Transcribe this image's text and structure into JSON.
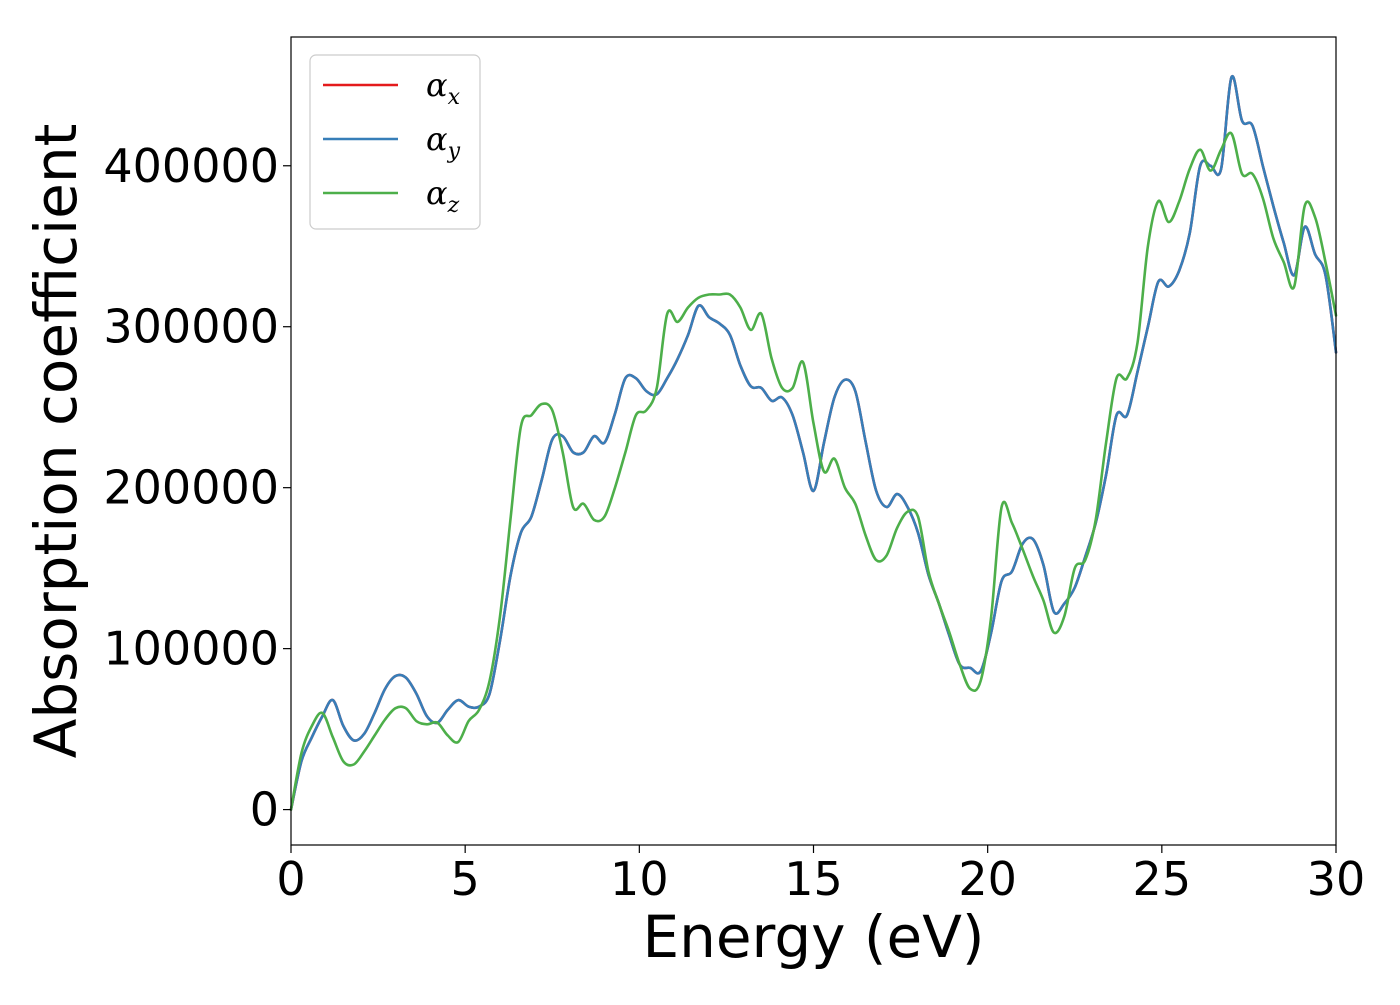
{
  "chart_data": {
    "type": "line",
    "xlabel": "Energy (eV)",
    "ylabel": "Absorption coefficient",
    "xlim": [
      0,
      30
    ],
    "ylim": [
      -22000,
      480000
    ],
    "xticks": [
      0,
      5,
      10,
      15,
      20,
      25,
      30
    ],
    "yticks": [
      0,
      100000,
      200000,
      300000,
      400000
    ],
    "grid": false,
    "legend_position": "top-left",
    "x": [
      0,
      0.3,
      0.6,
      0.9,
      1.2,
      1.5,
      1.8,
      2.1,
      2.4,
      2.7,
      3.0,
      3.3,
      3.6,
      3.9,
      4.2,
      4.5,
      4.8,
      5.1,
      5.4,
      5.7,
      6.0,
      6.3,
      6.6,
      6.9,
      7.2,
      7.5,
      7.8,
      8.1,
      8.4,
      8.7,
      9.0,
      9.3,
      9.6,
      9.9,
      10.2,
      10.5,
      10.8,
      11.1,
      11.4,
      11.7,
      12.0,
      12.3,
      12.6,
      12.9,
      13.2,
      13.5,
      13.8,
      14.1,
      14.4,
      14.7,
      15.0,
      15.3,
      15.6,
      15.9,
      16.2,
      16.5,
      16.8,
      17.1,
      17.4,
      17.7,
      18.0,
      18.3,
      18.6,
      18.9,
      19.2,
      19.5,
      19.8,
      20.1,
      20.4,
      20.7,
      21.0,
      21.3,
      21.6,
      21.9,
      22.2,
      22.5,
      22.8,
      23.1,
      23.4,
      23.7,
      24.0,
      24.3,
      24.6,
      24.9,
      25.2,
      25.5,
      25.8,
      26.1,
      26.4,
      26.7,
      27.0,
      27.3,
      27.6,
      27.9,
      28.2,
      28.5,
      28.8,
      29.1,
      29.4,
      29.7,
      30.0
    ],
    "series": [
      {
        "name": "αx",
        "sub": "x",
        "color": "#e41a1c",
        "values": [
          0,
          30000,
          45000,
          58000,
          68000,
          52000,
          43000,
          47000,
          60000,
          75000,
          83000,
          82000,
          72000,
          58000,
          54000,
          62000,
          68000,
          64000,
          64000,
          72000,
          105000,
          145000,
          172000,
          182000,
          205000,
          230000,
          232000,
          222000,
          222000,
          232000,
          228000,
          246000,
          268000,
          268000,
          260000,
          258000,
          268000,
          280000,
          295000,
          313000,
          306000,
          302000,
          295000,
          276000,
          263000,
          262000,
          254000,
          256000,
          245000,
          222000,
          198000,
          228000,
          256000,
          267000,
          260000,
          228000,
          198000,
          188000,
          196000,
          188000,
          172000,
          146000,
          128000,
          108000,
          90000,
          88000,
          86000,
          110000,
          142000,
          148000,
          165000,
          168000,
          152000,
          123000,
          128000,
          138000,
          157000,
          178000,
          208000,
          245000,
          245000,
          272000,
          300000,
          328000,
          325000,
          335000,
          358000,
          400000,
          400000,
          398000,
          455000,
          428000,
          425000,
          400000,
          375000,
          352000,
          332000,
          362000,
          345000,
          332000,
          284000
        ]
      },
      {
        "name": "αy",
        "sub": "y",
        "color": "#377eb8",
        "values": [
          0,
          30000,
          45000,
          58000,
          68000,
          52000,
          43000,
          47000,
          60000,
          75000,
          83000,
          82000,
          72000,
          58000,
          54000,
          62000,
          68000,
          64000,
          64000,
          72000,
          105000,
          145000,
          172000,
          182000,
          205000,
          230000,
          232000,
          222000,
          222000,
          232000,
          228000,
          246000,
          268000,
          268000,
          260000,
          258000,
          268000,
          280000,
          295000,
          313000,
          306000,
          302000,
          295000,
          276000,
          263000,
          262000,
          254000,
          256000,
          245000,
          222000,
          198000,
          228000,
          256000,
          267000,
          260000,
          228000,
          198000,
          188000,
          196000,
          188000,
          172000,
          146000,
          128000,
          108000,
          90000,
          88000,
          86000,
          110000,
          142000,
          148000,
          165000,
          168000,
          152000,
          123000,
          128000,
          138000,
          157000,
          178000,
          208000,
          245000,
          245000,
          272000,
          300000,
          328000,
          325000,
          335000,
          358000,
          400000,
          400000,
          398000,
          455000,
          428000,
          425000,
          400000,
          375000,
          352000,
          332000,
          362000,
          345000,
          332000,
          284000
        ]
      },
      {
        "name": "αz",
        "sub": "z",
        "color": "#4daf4a",
        "values": [
          0,
          35000,
          52000,
          60000,
          45000,
          30000,
          28000,
          36000,
          46000,
          56000,
          63000,
          63000,
          55000,
          53000,
          54000,
          46000,
          42000,
          55000,
          62000,
          80000,
          120000,
          180000,
          238000,
          245000,
          252000,
          248000,
          222000,
          188000,
          190000,
          180000,
          182000,
          200000,
          222000,
          245000,
          248000,
          262000,
          308000,
          303000,
          312000,
          318000,
          320000,
          320000,
          320000,
          312000,
          298000,
          308000,
          280000,
          262000,
          262000,
          278000,
          240000,
          210000,
          218000,
          200000,
          190000,
          170000,
          155000,
          158000,
          175000,
          185000,
          182000,
          148000,
          128000,
          110000,
          90000,
          75000,
          80000,
          120000,
          188000,
          178000,
          162000,
          145000,
          130000,
          110000,
          120000,
          150000,
          155000,
          180000,
          228000,
          268000,
          268000,
          290000,
          350000,
          378000,
          365000,
          378000,
          398000,
          410000,
          397000,
          410000,
          420000,
          395000,
          395000,
          380000,
          355000,
          340000,
          325000,
          375000,
          368000,
          340000,
          307000
        ]
      }
    ]
  }
}
